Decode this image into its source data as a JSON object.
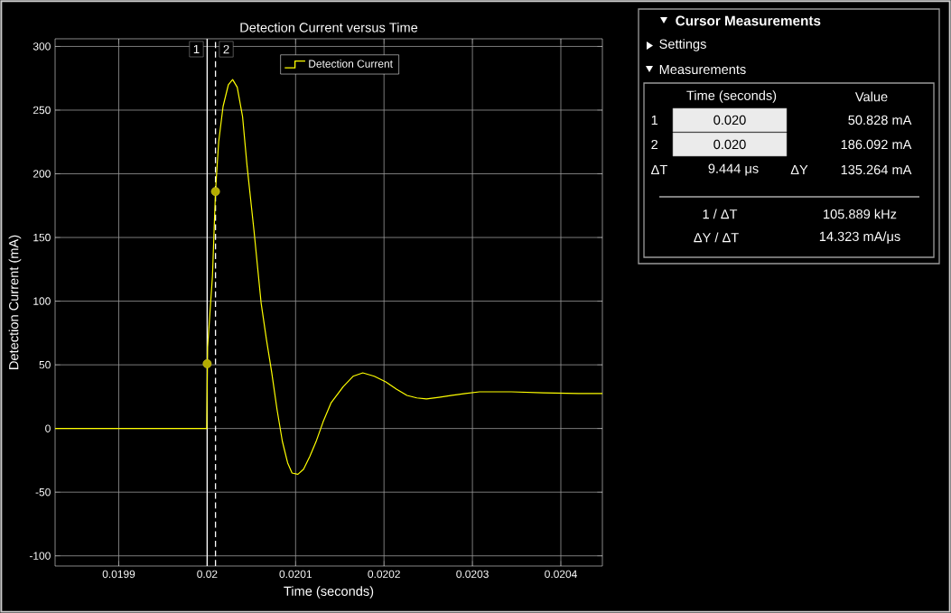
{
  "chart_data": [
    {
      "type": "line",
      "title": "Detection Current versus Time",
      "xlabel": "Time (seconds)",
      "ylabel": "Detection Current (mA)",
      "xlim": [
        0.019828,
        0.020447
      ],
      "ylim": [
        -108,
        306
      ],
      "xticks": [
        0.0199,
        0.02,
        0.0201,
        0.0202,
        0.0203,
        0.0204
      ],
      "yticks": [
        -100,
        -50,
        0,
        50,
        100,
        150,
        200,
        250,
        300
      ],
      "grid": true,
      "legend": "top",
      "marker": "none",
      "line_style": "solid",
      "series": [
        {
          "name": "Detection Current",
          "type": "line",
          "color": "#ffff00",
          "x": [
            0.019828,
            0.0199995,
            0.0200005,
            0.020006,
            0.0200094,
            0.020013,
            0.020018,
            0.020024,
            0.0200288,
            0.020034,
            0.02004,
            0.020045,
            0.020053,
            0.020061,
            0.020067,
            0.020073,
            0.020079,
            0.020085,
            0.020091,
            0.020096,
            0.0201026,
            0.020109,
            0.020116,
            0.020123,
            0.020131,
            0.02014,
            0.020154,
            0.020165,
            0.020176,
            0.020189,
            0.020202,
            0.020214,
            0.020226,
            0.020237,
            0.020248,
            0.020262,
            0.020277,
            0.020292,
            0.020308,
            0.020344,
            0.02038,
            0.02042,
            0.020447
          ],
          "values": [
            0,
            0,
            64,
            120,
            186.092,
            225,
            253,
            270,
            274,
            268,
            245,
            207,
            155,
            98.6,
            70,
            44,
            15,
            -10,
            -27,
            -35,
            -36,
            -32,
            -22,
            -10.6,
            5,
            20,
            33,
            41,
            43.7,
            41,
            36.6,
            31,
            26,
            24,
            23.2,
            24.5,
            26,
            27.5,
            28.8,
            28.8,
            28,
            27.5,
            27.5
          ]
        },
        {
          "type": "scatter",
          "color": "#b3ac00",
          "marker": "circle",
          "x": [
            0.02,
            0.0200094
          ],
          "values": [
            50.828,
            186.092
          ]
        }
      ],
      "ref_lines": [
        {
          "axis": "x",
          "value": 0.02,
          "color": "#ffffff",
          "line_style": "solid"
        },
        {
          "axis": "x",
          "value": 0.0200094,
          "color": "#ffffff",
          "line_style": "dashed"
        }
      ],
      "annotations": [
        {
          "text": "1",
          "x": 0.02
        },
        {
          "text": "2",
          "x": 0.0200094
        }
      ]
    },
    {
      "type": "other",
      "title": "Cursor Measurements",
      "annotations": [
        "Settings",
        "Measurements",
        "Time (seconds)",
        "Value",
        "1",
        "0.020",
        "50.828 mA",
        "2",
        "0.020",
        "186.092 mA",
        "ΔT",
        "9.444 μs",
        "ΔY",
        "135.264 mA",
        "1 / ΔT",
        "105.889 kHz",
        "ΔY / ΔT",
        "14.323 mA/μs"
      ]
    }
  ]
}
